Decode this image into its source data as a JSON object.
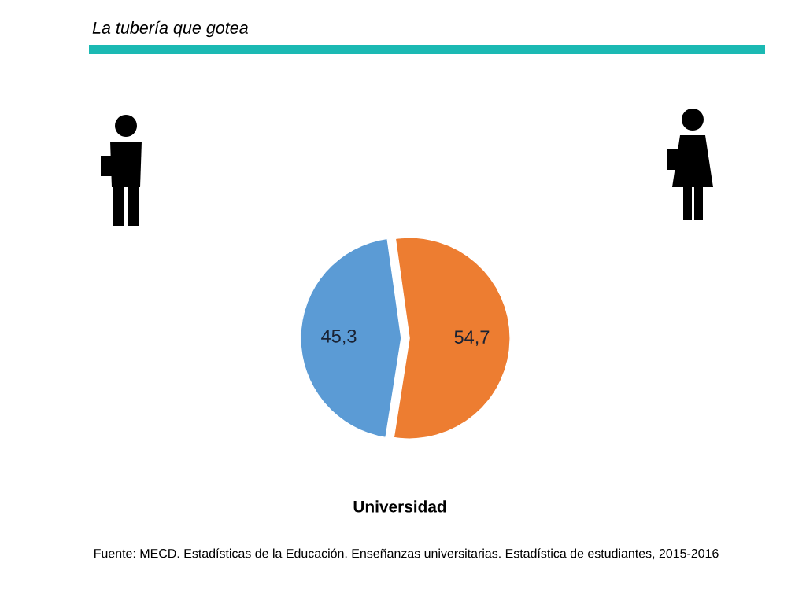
{
  "chart_data": {
    "type": "pie",
    "title": "La tubería que gotea",
    "subtitle": "Universidad",
    "categories": [
      null,
      null
    ],
    "values": [
      45.3,
      54.7
    ],
    "colors": [
      "#5b9bd5",
      "#ed7d31"
    ],
    "value_labels": [
      "45,3",
      "54,7"
    ],
    "annotations": [
      "Fuente: MECD. Estadísticas de la Educación. Enseñanzas universitarias. Estadística de estudiantes, 2015-2016"
    ]
  }
}
